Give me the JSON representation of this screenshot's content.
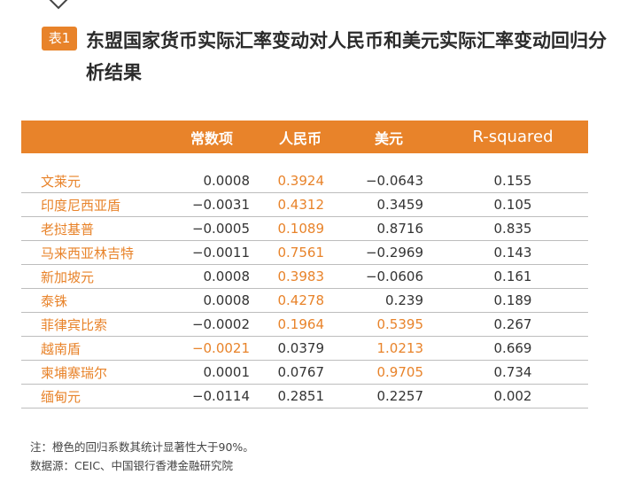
{
  "badge": "表1",
  "title": "东盟国家货币实际汇率变动对人民币和美元实际汇率变动回归分析结果",
  "columns": [
    "",
    "常数项",
    "人民币",
    "美元",
    "R-squared"
  ],
  "rows": [
    {
      "name": "文莱元",
      "const": "0.0008",
      "rmb": "0.3924",
      "usd": "−0.0643",
      "r2": "0.155",
      "hl": [
        false,
        true,
        false
      ]
    },
    {
      "name": "印度尼西亚盾",
      "const": "−0.0031",
      "rmb": "0.4312",
      "usd": "0.3459",
      "r2": "0.105",
      "hl": [
        false,
        true,
        false
      ]
    },
    {
      "name": "老挝基普",
      "const": "−0.0005",
      "rmb": "0.1089",
      "usd": "0.8716",
      "r2": "0.835",
      "hl": [
        false,
        true,
        false
      ]
    },
    {
      "name": "马来西亚林吉特",
      "const": "−0.0011",
      "rmb": "0.7561",
      "usd": "−0.2969",
      "r2": "0.143",
      "hl": [
        false,
        true,
        false
      ]
    },
    {
      "name": "新加坡元",
      "const": "0.0008",
      "rmb": "0.3983",
      "usd": "−0.0606",
      "r2": "0.161",
      "hl": [
        false,
        true,
        false
      ]
    },
    {
      "name": "泰铢",
      "const": "0.0008",
      "rmb": "0.4278",
      "usd": "0.239",
      "r2": "0.189",
      "hl": [
        false,
        true,
        false
      ]
    },
    {
      "name": "菲律宾比索",
      "const": "−0.0002",
      "rmb": "0.1964",
      "usd": "0.5395",
      "r2": "0.267",
      "hl": [
        false,
        true,
        true
      ]
    },
    {
      "name": "越南盾",
      "const": "−0.0021",
      "rmb": "0.0379",
      "usd": "1.0213",
      "r2": "0.669",
      "hl": [
        true,
        false,
        true
      ]
    },
    {
      "name": "柬埔寨瑞尔",
      "const": "0.0001",
      "rmb": "0.0767",
      "usd": "0.9705",
      "r2": "0.734",
      "hl": [
        false,
        false,
        true
      ]
    },
    {
      "name": "缅甸元",
      "const": "−0.0114",
      "rmb": "0.2851",
      "usd": "0.2257",
      "r2": "0.002",
      "hl": [
        false,
        false,
        false
      ]
    }
  ],
  "notes": {
    "note": "注：橙色的回归系数其统计显著性大于90%。",
    "source": "数据源：CEIC、中国银行香港金融研究院"
  },
  "colors": {
    "accent": "#e8832a",
    "text": "#333333",
    "line": "#bdbdbd"
  }
}
